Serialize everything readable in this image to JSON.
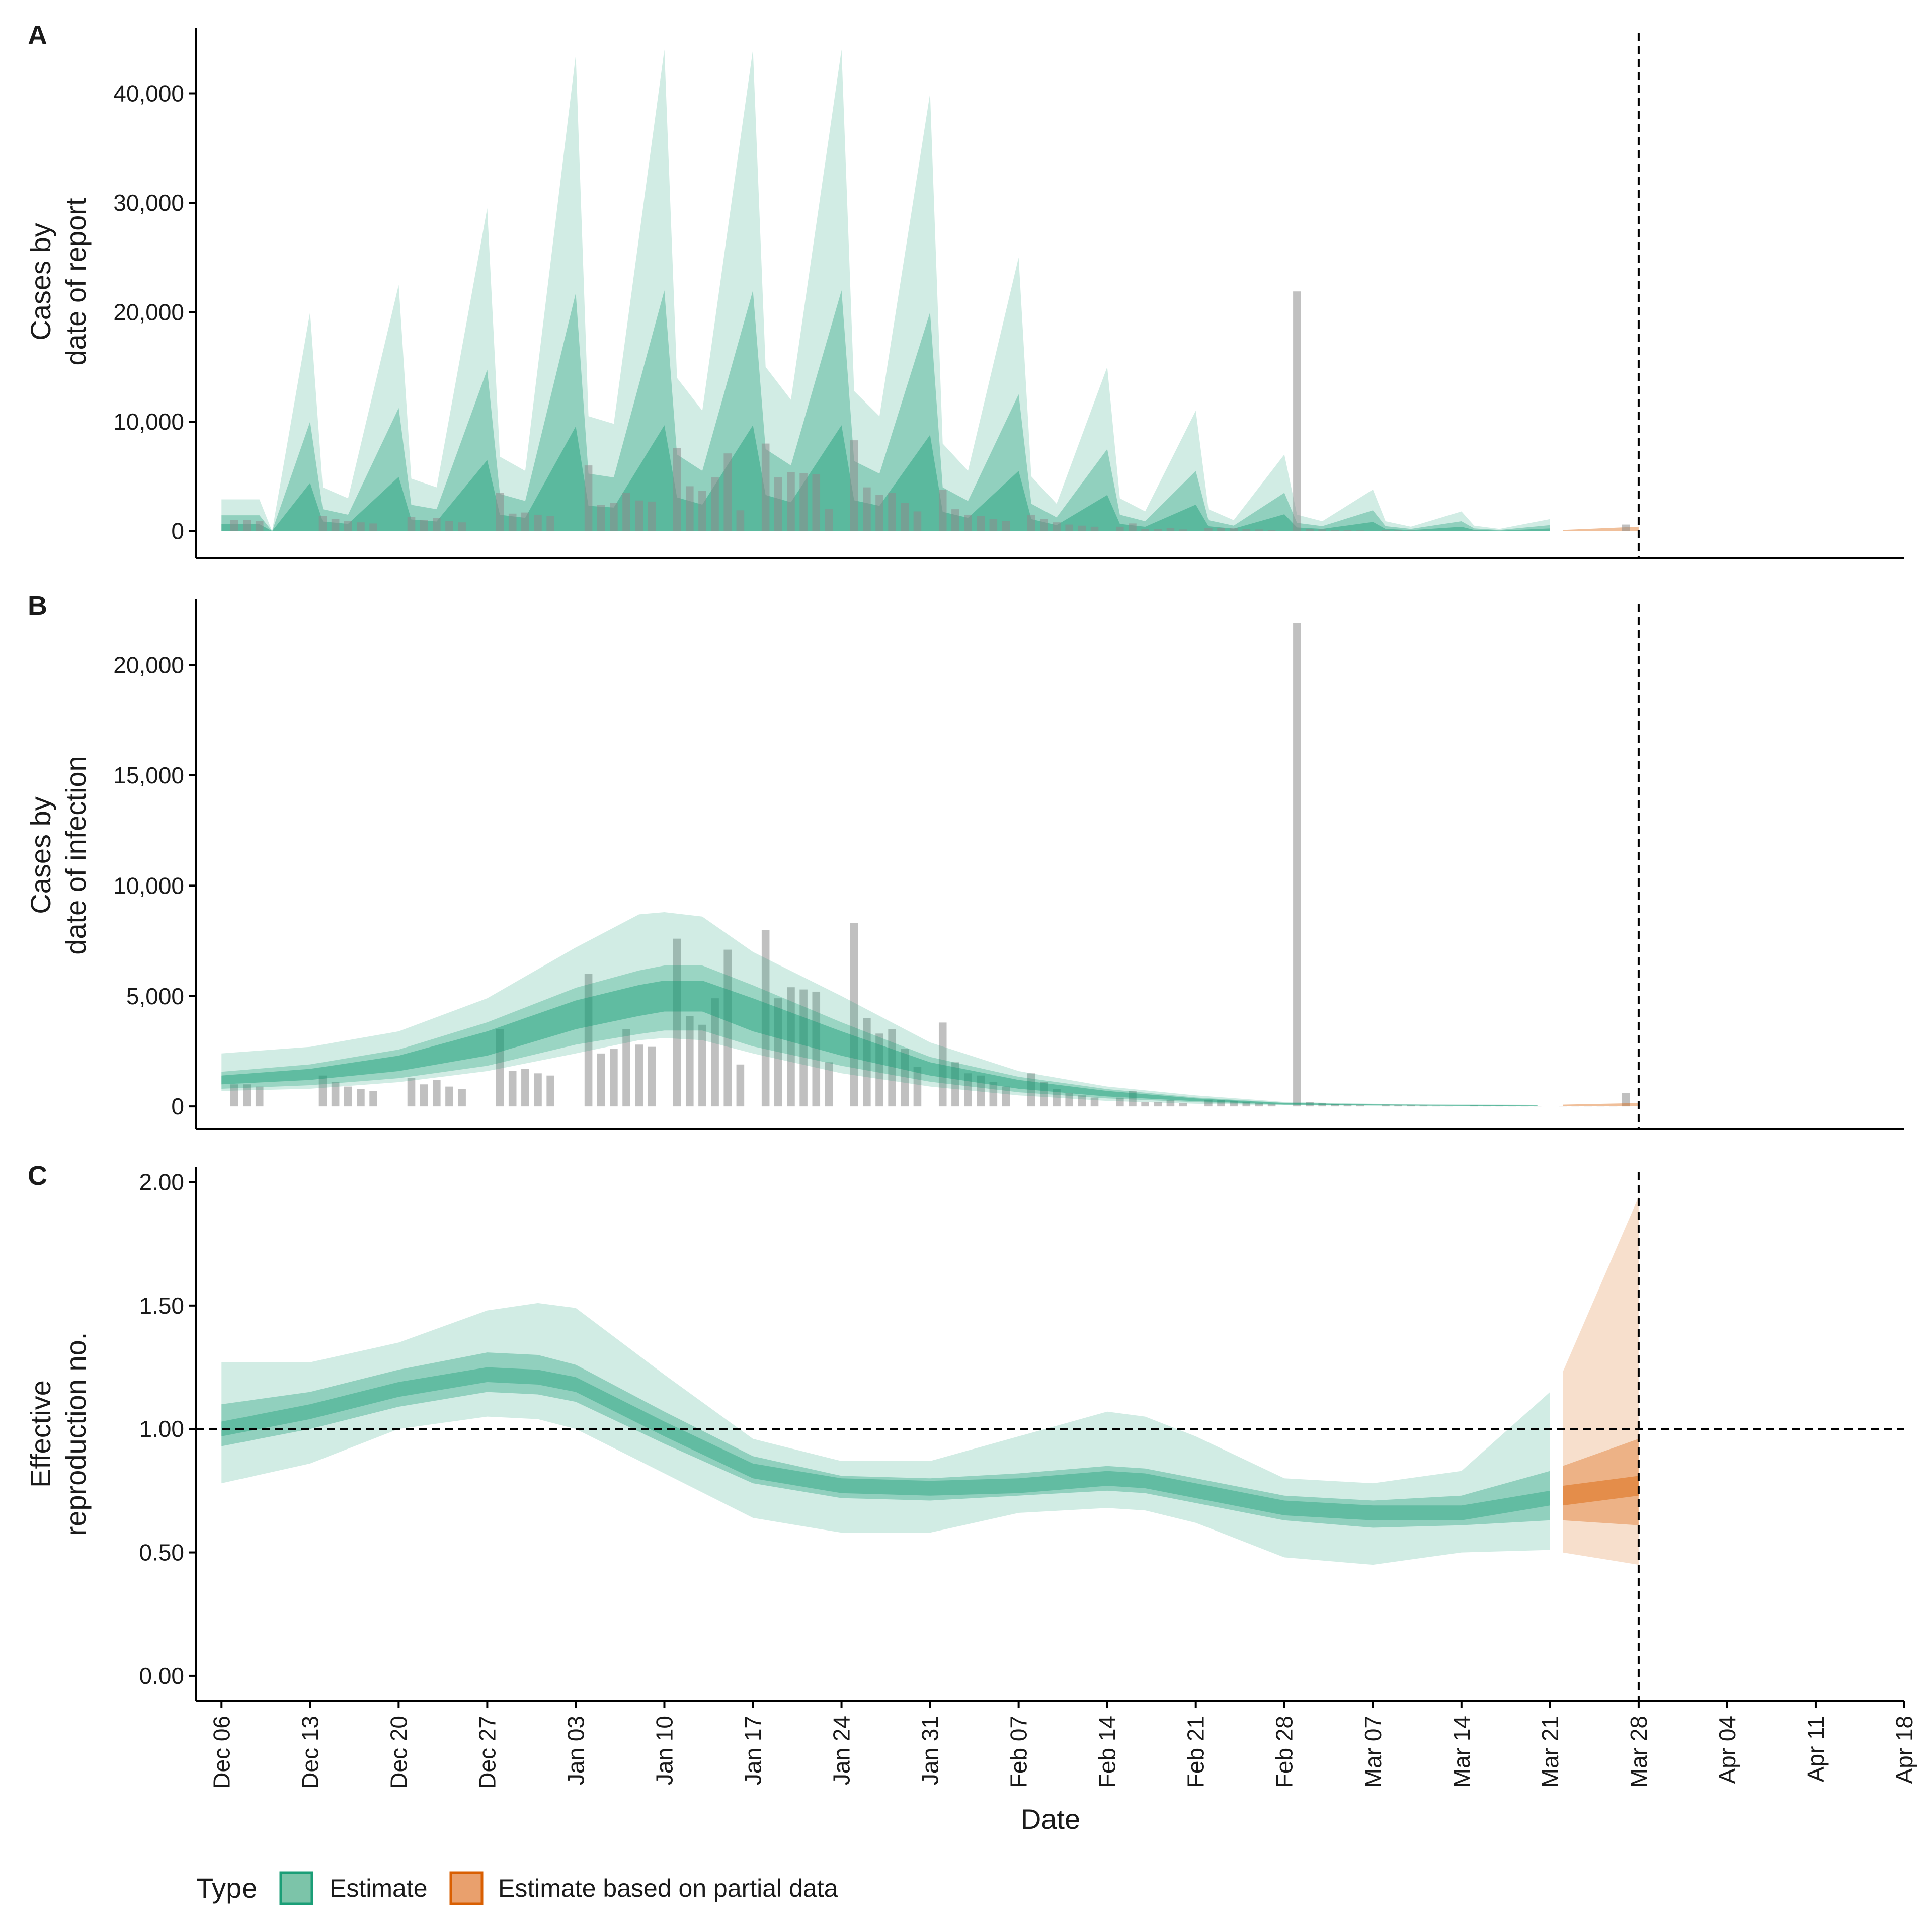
{
  "colors": {
    "estimate": "#1b9e77",
    "partial": "#d95f02",
    "bars": "#9e9e9e",
    "axis": "#000000"
  },
  "chart_data": [
    {
      "panel": "A",
      "type": "area",
      "title": "",
      "xlabel": "",
      "ylabel": "Cases by date of report",
      "ylabel_lines": [
        "Cases by",
        "date of report"
      ],
      "ylim": [
        -2500,
        46000
      ],
      "yticks": [
        0,
        10000,
        20000,
        30000,
        40000
      ],
      "ytick_labels": [
        "0",
        "10,000",
        "20,000",
        "30,000",
        "40,000"
      ],
      "x_start": "2020-12-06",
      "bars_day_offset": [
        0,
        1,
        2,
        3,
        7,
        8,
        9,
        10,
        11,
        12,
        14,
        15,
        16,
        17,
        18,
        19,
        21,
        22,
        23,
        24,
        25,
        26,
        28,
        29,
        30,
        31,
        32,
        33,
        34,
        35,
        36,
        37,
        38,
        39,
        40,
        41,
        42,
        43,
        44,
        45,
        46,
        47,
        48,
        49,
        50,
        51,
        52,
        53,
        54,
        55,
        56,
        57,
        58,
        59,
        60,
        61,
        62,
        63,
        64,
        65,
        66,
        67,
        68,
        69,
        70,
        71,
        72,
        73,
        74,
        75,
        76,
        77,
        78,
        79,
        80,
        81,
        82,
        83,
        84,
        85,
        86,
        87,
        88,
        89,
        90,
        91,
        92,
        93,
        94,
        95,
        96,
        97,
        98,
        99,
        100,
        101,
        102,
        103,
        104,
        105,
        106,
        107,
        108,
        109,
        110,
        111
      ],
      "bars_values": [
        0,
        1000,
        1000,
        900,
        0,
        1400,
        1100,
        900,
        800,
        700,
        0,
        1300,
        1000,
        1200,
        900,
        800,
        0,
        3500,
        1600,
        1700,
        1500,
        1400,
        0,
        6000,
        2400,
        2600,
        3500,
        2800,
        2700,
        0,
        7600,
        4100,
        3700,
        4900,
        7100,
        1900,
        0,
        8000,
        4900,
        5400,
        5300,
        5200,
        2000,
        0,
        8300,
        4000,
        3300,
        3500,
        2600,
        1800,
        0,
        3800,
        2000,
        1500,
        1400,
        1100,
        900,
        0,
        1500,
        1100,
        800,
        600,
        500,
        400,
        0,
        400,
        700,
        200,
        200,
        300,
        150,
        0,
        300,
        300,
        250,
        200,
        150,
        120,
        0,
        21900,
        200,
        150,
        100,
        80,
        60,
        0,
        80,
        60,
        50,
        40,
        30,
        20,
        0,
        40,
        30,
        30,
        20,
        20,
        15,
        0,
        20,
        20,
        20,
        20,
        20,
        600
      ],
      "series": [
        {
          "name": "Estimate",
          "band": "90% CI",
          "x_day": [
            0,
            3,
            4,
            7,
            8,
            10,
            14,
            15,
            17,
            21,
            22,
            24,
            28,
            29,
            31,
            35,
            36,
            38,
            42,
            43,
            45,
            49,
            50,
            52,
            56,
            57,
            59,
            63,
            64,
            66,
            70,
            71,
            73,
            77,
            78,
            80,
            84,
            85,
            87,
            91,
            92,
            94,
            98,
            99,
            101,
            105
          ],
          "upper": [
            2900,
            2900,
            0,
            20000,
            4000,
            3000,
            22500,
            4800,
            4000,
            29500,
            6800,
            5500,
            43500,
            10500,
            9800,
            44000,
            14000,
            11000,
            44000,
            15000,
            12000,
            44000,
            12800,
            10500,
            40000,
            8000,
            5500,
            25000,
            5000,
            2500,
            15000,
            3000,
            1800,
            11000,
            2000,
            1000,
            7000,
            1500,
            900,
            3800,
            900,
            400,
            1800,
            500,
            200,
            1100
          ],
          "lower": [
            0,
            0,
            0,
            0,
            0,
            0,
            0,
            0,
            0,
            0,
            0,
            0,
            0,
            0,
            0,
            0,
            0,
            0,
            0,
            0,
            0,
            0,
            0,
            0,
            0,
            0,
            0,
            0,
            0,
            0,
            0,
            0,
            0,
            0,
            0,
            0,
            0,
            0,
            0,
            0,
            0,
            0,
            0,
            0,
            0,
            0
          ]
        },
        {
          "name": "Estimate based on partial data",
          "x_day": [
            106,
            112
          ],
          "upper": [
            100,
            400
          ],
          "lower": [
            0,
            0
          ]
        }
      ],
      "vline_day": 112
    },
    {
      "panel": "B",
      "type": "area",
      "title": "",
      "xlabel": "",
      "ylabel": "Cases by date of infection",
      "ylabel_lines": [
        "Cases by",
        "date of infection"
      ],
      "ylim": [
        -1000,
        23000
      ],
      "yticks": [
        0,
        5000,
        10000,
        15000,
        20000
      ],
      "ytick_labels": [
        "0",
        "5,000",
        "10,000",
        "15,000",
        "20,000"
      ],
      "series": [
        {
          "name": "Estimate",
          "x_day": [
            0,
            7,
            14,
            21,
            28,
            33,
            35,
            38,
            42,
            49,
            56,
            63,
            70,
            77,
            84,
            91,
            98,
            104
          ],
          "median": [
            1200,
            1400,
            1900,
            2800,
            4100,
            4800,
            5000,
            5000,
            4100,
            2800,
            1700,
            1000,
            600,
            300,
            120,
            70,
            40,
            30
          ],
          "inner_upper": [
            1400,
            1700,
            2300,
            3400,
            4800,
            5500,
            5700,
            5700,
            4900,
            3400,
            2000,
            1200,
            700,
            360,
            150,
            90,
            60,
            40
          ],
          "inner_lower": [
            1000,
            1200,
            1600,
            2300,
            3500,
            4100,
            4300,
            4300,
            3400,
            2300,
            1400,
            800,
            450,
            240,
            90,
            55,
            30,
            20
          ],
          "upper": [
            2400,
            2700,
            3400,
            4900,
            7200,
            8700,
            8800,
            8600,
            7000,
            5000,
            2900,
            1600,
            900,
            500,
            200,
            120,
            90,
            70
          ],
          "lower": [
            700,
            800,
            1100,
            1600,
            2400,
            3000,
            3100,
            3000,
            2400,
            1500,
            900,
            500,
            250,
            120,
            50,
            30,
            20,
            10
          ]
        },
        {
          "name": "Estimate based on partial data",
          "x_day": [
            106,
            112
          ],
          "upper": [
            80,
            150
          ],
          "lower": [
            10,
            20
          ]
        }
      ],
      "vline_day": 112
    },
    {
      "panel": "C",
      "type": "area",
      "title": "",
      "xlabel": "Date",
      "ylabel": "Effective reproduction no.",
      "ylabel_lines": [
        "Effective",
        "reproduction no."
      ],
      "ylim": [
        -0.1,
        2.06
      ],
      "yticks": [
        0,
        0.5,
        1.0,
        1.5,
        2.0
      ],
      "ytick_labels": [
        "0.00",
        "0.50",
        "1.00",
        "1.50",
        "2.00"
      ],
      "hline": 1.0,
      "series": [
        {
          "name": "Estimate",
          "x_day": [
            0,
            7,
            14,
            21,
            25,
            28,
            35,
            42,
            49,
            56,
            63,
            70,
            73,
            77,
            84,
            91,
            98,
            105
          ],
          "median": [
            1.0,
            1.07,
            1.16,
            1.22,
            1.21,
            1.18,
            1.0,
            0.83,
            0.77,
            0.76,
            0.77,
            0.8,
            0.79,
            0.75,
            0.68,
            0.66,
            0.66,
            0.72
          ],
          "inner_upper": [
            1.1,
            1.15,
            1.24,
            1.31,
            1.3,
            1.26,
            1.07,
            0.89,
            0.81,
            0.8,
            0.82,
            0.85,
            0.84,
            0.8,
            0.73,
            0.71,
            0.73,
            0.83
          ],
          "inner_lower": [
            0.93,
            1.0,
            1.09,
            1.15,
            1.14,
            1.11,
            0.94,
            0.78,
            0.72,
            0.71,
            0.73,
            0.75,
            0.74,
            0.7,
            0.63,
            0.6,
            0.61,
            0.63
          ],
          "upper": [
            1.27,
            1.27,
            1.35,
            1.48,
            1.51,
            1.49,
            1.22,
            0.96,
            0.87,
            0.87,
            0.97,
            1.07,
            1.05,
            0.97,
            0.8,
            0.78,
            0.83,
            1.15
          ],
          "lower": [
            0.78,
            0.86,
            1.0,
            1.05,
            1.04,
            1.0,
            0.82,
            0.64,
            0.58,
            0.58,
            0.66,
            0.68,
            0.67,
            0.62,
            0.48,
            0.45,
            0.5,
            0.51
          ]
        },
        {
          "name": "Estimate based on partial data",
          "x_day": [
            106,
            112
          ],
          "median": [
            0.73,
            0.77
          ],
          "inner_upper": [
            0.85,
            0.96
          ],
          "inner_lower": [
            0.63,
            0.61
          ],
          "upper": [
            1.23,
            1.94
          ],
          "lower": [
            0.5,
            0.45
          ]
        }
      ],
      "vline_day": 112
    }
  ],
  "x_axis": {
    "start": "2020-12-06",
    "range_days": [
      -2,
      133
    ],
    "tick_days": [
      0,
      7,
      14,
      21,
      28,
      35,
      42,
      49,
      56,
      63,
      70,
      77,
      84,
      91,
      98,
      105,
      112,
      119,
      126,
      133
    ],
    "tick_labels": [
      "Dec 06",
      "Dec 13",
      "Dec 20",
      "Dec 27",
      "Jan 03",
      "Jan 10",
      "Jan 17",
      "Jan 24",
      "Jan 31",
      "Feb 07",
      "Feb 14",
      "Feb 21",
      "Feb 28",
      "Mar 07",
      "Mar 14",
      "Mar 21",
      "Mar 28",
      "Apr 04",
      "Apr 11",
      "Apr 18"
    ],
    "title": "Date"
  },
  "legend": {
    "title": "Type",
    "items": [
      {
        "label": "Estimate",
        "color": "#1b9e77"
      },
      {
        "label": "Estimate based on partial data",
        "color": "#d95f02"
      }
    ]
  }
}
